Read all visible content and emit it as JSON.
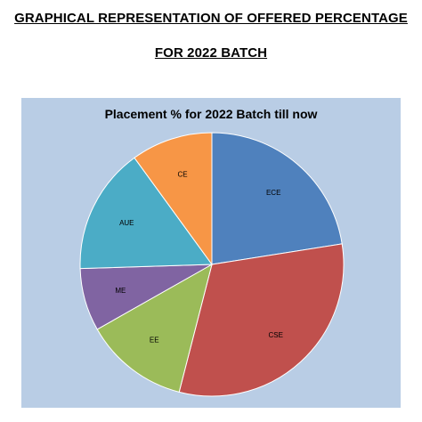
{
  "document": {
    "heading_line_1": "GRAPHICAL REPRESENTATION OF OFFERED PERCENTAGE",
    "heading_line_2": "FOR 2022 BATCH"
  },
  "colors": {
    "chart_background": "#b9cde5",
    "slice_border": "#ffffff"
  },
  "chart_data": {
    "type": "pie",
    "title": "Placement % for 2022 Batch till now",
    "categories": [
      "ECE",
      "CSE",
      "EE",
      "ME",
      "AUE",
      "CE"
    ],
    "values": [
      22.5,
      31.5,
      12.8,
      7.7,
      15.5,
      10.0
    ],
    "colors": [
      "#4f81bd",
      "#c0504d",
      "#9bbb59",
      "#8064a2",
      "#4bacc6",
      "#f79646"
    ],
    "start_angle_deg": 0,
    "direction": "clockwise",
    "legend": "none"
  }
}
